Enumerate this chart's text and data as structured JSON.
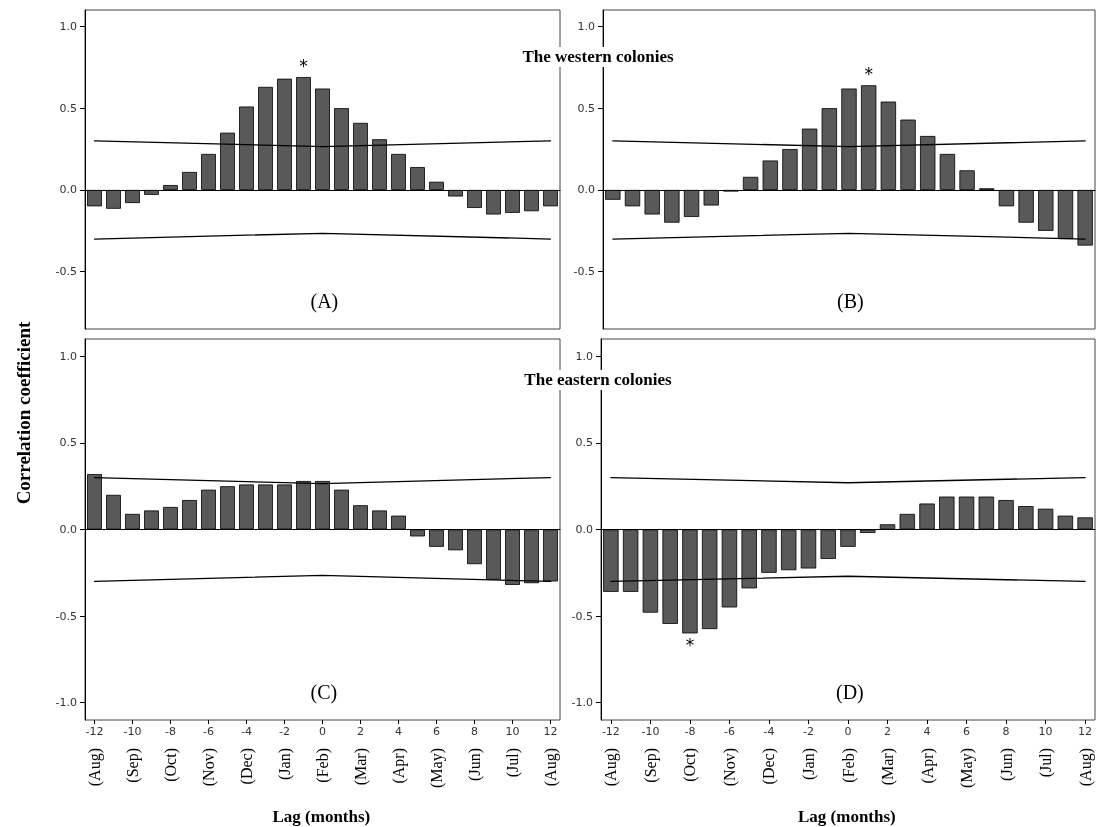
{
  "chart_data": [
    {
      "type": "bar",
      "title": "The western colonies",
      "ylabel": "Correlation coefficient",
      "annotations": [
        "(A)"
      ],
      "tick_labels": "y",
      "ylim": [
        -0.85,
        1.1
      ],
      "yticks": [
        {
          "value": -0.5,
          "label": "-0.5"
        },
        {
          "value": 0,
          "label": "0.0"
        },
        {
          "value": 0.5,
          "label": "0.5"
        },
        {
          "value": 1,
          "label": "1.0"
        }
      ],
      "marker": "none",
      "line_style": "solid",
      "categories": [
        "-12",
        null,
        "-10",
        null,
        "-8",
        null,
        "-6",
        null,
        "-4",
        null,
        "-2",
        null,
        "0",
        null,
        "2",
        null,
        "4",
        null,
        "6",
        null,
        "8",
        null,
        "10",
        null,
        "12"
      ],
      "series": [
        {
          "color": "#595959",
          "values": [
            -0.1,
            -0.115,
            -0.08,
            -0.03,
            0.03,
            0.11,
            0.22,
            0.35,
            0.51,
            0.63,
            0.68,
            0.69,
            0.62,
            0.5,
            0.41,
            0.31,
            0.22,
            0.14,
            0.05,
            -0.04,
            -0.11,
            -0.15,
            -0.14,
            -0.13,
            -0.1
          ],
          "value_labels": [
            null,
            null,
            null,
            null,
            null,
            null,
            null,
            null,
            null,
            null,
            null,
            "*",
            null,
            null,
            null,
            null,
            null,
            null,
            null,
            null,
            null,
            null,
            null,
            null,
            null
          ]
        },
        {
          "type": "line",
          "color": "#000000",
          "x": [
            "-12",
            "0",
            "12"
          ],
          "values": [
            0.3,
            0.265,
            0.3
          ]
        },
        {
          "type": "line",
          "color": "#000000",
          "x": [
            "-12",
            "0",
            "12"
          ],
          "values": [
            -0.3,
            -0.265,
            -0.3
          ]
        }
      ]
    },
    {
      "type": "bar",
      "annotations": [
        "(B)"
      ],
      "tick_labels": "y",
      "ylim": [
        -0.85,
        1.1
      ],
      "yticks": [
        {
          "value": -0.5,
          "label": "-0.5"
        },
        {
          "value": 0,
          "label": "0.0"
        },
        {
          "value": 0.5,
          "label": "0.5"
        },
        {
          "value": 1,
          "label": "1.0"
        }
      ],
      "marker": "none",
      "line_style": "solid",
      "categories": [
        "-12",
        null,
        "-10",
        null,
        "-8",
        null,
        "-6",
        null,
        "-4",
        null,
        "-2",
        null,
        "0",
        null,
        "2",
        null,
        "4",
        null,
        "6",
        null,
        "8",
        null,
        "10",
        null,
        "12"
      ],
      "series": [
        {
          "color": "#595959",
          "values": [
            -0.06,
            -0.1,
            -0.15,
            -0.2,
            -0.165,
            -0.095,
            -0.01,
            0.08,
            0.18,
            0.25,
            0.375,
            0.5,
            0.62,
            0.64,
            0.54,
            0.43,
            0.33,
            0.22,
            0.12,
            0.01,
            -0.1,
            -0.2,
            -0.25,
            -0.3,
            -0.34
          ],
          "value_labels": [
            null,
            null,
            null,
            null,
            null,
            null,
            null,
            null,
            null,
            null,
            null,
            null,
            null,
            "*",
            null,
            null,
            null,
            null,
            null,
            null,
            null,
            null,
            null,
            null,
            null
          ]
        },
        {
          "type": "line",
          "color": "#000000",
          "x": [
            "-12",
            "0",
            "12"
          ],
          "values": [
            0.3,
            0.265,
            0.3
          ]
        },
        {
          "type": "line",
          "color": "#000000",
          "x": [
            "-12",
            "0",
            "12"
          ],
          "values": [
            -0.3,
            -0.265,
            -0.3
          ]
        }
      ]
    },
    {
      "type": "bar",
      "title": "The eastern colonies",
      "xlabel": "Lag (months)",
      "ylim": [
        -1.1,
        1.1
      ],
      "yticks": [
        {
          "value": -1,
          "label": "-1.0"
        },
        {
          "value": -0.5,
          "label": "-0.5"
        },
        {
          "value": 0,
          "label": "0.0"
        },
        {
          "value": 0.5,
          "label": "0.5"
        },
        {
          "value": 1,
          "label": "1.0"
        }
      ],
      "marker": "none",
      "line_style": "solid",
      "annotations": [
        "(C)",
        "(Aug)",
        "(Sep)",
        "(Oct)",
        "(Nov)",
        "(Dec)",
        "(Jan)",
        "(Feb)",
        "(Mar)",
        "(Apr)",
        "(May)",
        "(Jun)",
        "(Jul)",
        "(Aug)"
      ],
      "categories": [
        "-12",
        null,
        "-10",
        null,
        "-8",
        null,
        "-6",
        null,
        "-4",
        null,
        "-2",
        null,
        "0",
        null,
        "2",
        null,
        "4",
        null,
        "6",
        null,
        "8",
        null,
        "10",
        null,
        "12"
      ],
      "series": [
        {
          "color": "#595959",
          "values": [
            0.32,
            0.2,
            0.09,
            0.11,
            0.13,
            0.17,
            0.23,
            0.25,
            0.26,
            0.26,
            0.26,
            0.28,
            0.28,
            0.23,
            0.14,
            0.11,
            0.08,
            -0.04,
            -0.1,
            -0.12,
            -0.2,
            -0.29,
            -0.32,
            -0.31,
            -0.3
          ]
        },
        {
          "type": "line",
          "color": "#000000",
          "x": [
            "-12",
            "0",
            "12"
          ],
          "values": [
            0.3,
            0.265,
            0.3
          ]
        },
        {
          "type": "line",
          "color": "#000000",
          "x": [
            "-12",
            "0",
            "12"
          ],
          "values": [
            -0.3,
            -0.265,
            -0.3
          ]
        }
      ]
    },
    {
      "type": "bar",
      "xlabel": "Lag (months)",
      "ylim": [
        -1.1,
        1.1
      ],
      "yticks": [
        {
          "value": -1,
          "label": "-1.0"
        },
        {
          "value": -0.5,
          "label": "-0.5"
        },
        {
          "value": 0,
          "label": "0.0"
        },
        {
          "value": 0.5,
          "label": "0.5"
        },
        {
          "value": 1,
          "label": "1.0"
        }
      ],
      "marker": "none",
      "line_style": "solid",
      "annotations": [
        "(D)",
        "(Aug)",
        "(Sep)",
        "(Oct)",
        "(Nov)",
        "(Dec)",
        "(Jan)",
        "(Feb)",
        "(Mar)",
        "(Apr)",
        "(May)",
        "(Jun)",
        "(Jul)",
        "(Aug)"
      ],
      "categories": [
        "-12",
        null,
        "-10",
        null,
        "-8",
        null,
        "-6",
        null,
        "-4",
        null,
        "-2",
        null,
        "0",
        null,
        "2",
        null,
        "4",
        null,
        "6",
        null,
        "8",
        null,
        "10",
        null,
        "12"
      ],
      "series": [
        {
          "color": "#595959",
          "values": [
            -0.36,
            -0.36,
            -0.48,
            -0.545,
            -0.6,
            -0.575,
            -0.45,
            -0.34,
            -0.25,
            -0.235,
            -0.225,
            -0.17,
            -0.1,
            -0.02,
            0.03,
            0.09,
            0.15,
            0.19,
            0.19,
            0.19,
            0.17,
            0.135,
            0.12,
            0.08,
            0.07
          ],
          "value_labels": [
            null,
            null,
            null,
            null,
            "*",
            null,
            null,
            null,
            null,
            null,
            null,
            null,
            null,
            null,
            null,
            null,
            null,
            null,
            null,
            null,
            null,
            null,
            null,
            null,
            null
          ]
        },
        {
          "type": "line",
          "color": "#000000",
          "x": [
            "-12",
            "0",
            "12"
          ],
          "values": [
            0.3,
            0.27,
            0.3
          ]
        },
        {
          "type": "line",
          "color": "#000000",
          "x": [
            "-12",
            "0",
            "12"
          ],
          "values": [
            -0.3,
            -0.27,
            -0.3
          ]
        }
      ]
    }
  ]
}
